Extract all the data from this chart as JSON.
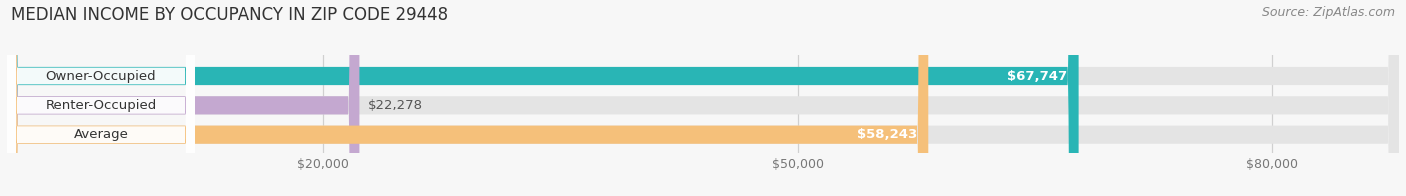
{
  "title": "MEDIAN INCOME BY OCCUPANCY IN ZIP CODE 29448",
  "source": "Source: ZipAtlas.com",
  "categories": [
    "Owner-Occupied",
    "Renter-Occupied",
    "Average"
  ],
  "values": [
    67747,
    22278,
    58243
  ],
  "bar_colors": [
    "#29b5b5",
    "#c4a8d0",
    "#f5c07a"
  ],
  "bar_labels": [
    "$67,747",
    "$22,278",
    "$58,243"
  ],
  "value_label_inside": [
    true,
    false,
    true
  ],
  "value_label_colors": [
    "#ffffff",
    "#555555",
    "#ffffff"
  ],
  "x_ticks": [
    20000,
    50000,
    80000
  ],
  "x_tick_labels": [
    "$20,000",
    "$50,000",
    "$80,000"
  ],
  "xmin": 0,
  "xmax": 88000,
  "background_color": "#f7f7f7",
  "bar_background": "#e4e4e4",
  "grid_color": "#d0d0d0",
  "title_fontsize": 12,
  "source_fontsize": 9,
  "label_fontsize": 9.5,
  "value_fontsize": 9.5,
  "tick_fontsize": 9,
  "bar_height": 0.62,
  "fig_width": 14.06,
  "fig_height": 1.96
}
